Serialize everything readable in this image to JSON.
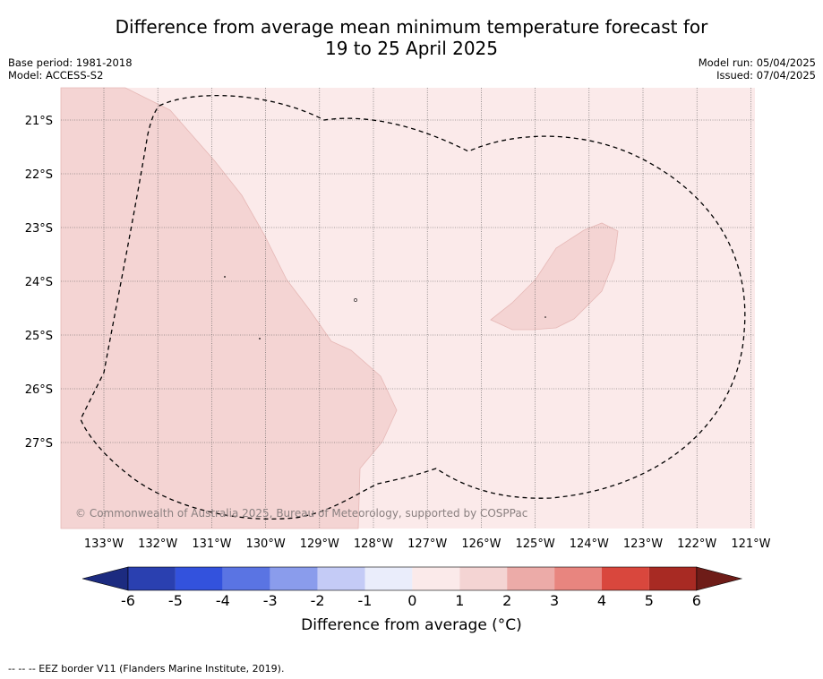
{
  "title": {
    "line1": "Difference from average mean minimum temperature forecast for",
    "line2": "19 to 25 April 2025"
  },
  "meta": {
    "base_period": "Base period: 1981-2018",
    "model": "Model: ACCESS-S2",
    "model_run": "Model run: 05/04/2025",
    "issued": "Issued: 07/04/2025"
  },
  "map": {
    "latitude_labels": [
      "21°S",
      "22°S",
      "23°S",
      "24°S",
      "25°S",
      "26°S",
      "27°S"
    ],
    "longitude_labels": [
      "133°W",
      "132°W",
      "131°W",
      "130°W",
      "129°W",
      "128°W",
      "127°W",
      "126°W",
      "125°W",
      "124°W",
      "123°W",
      "122°W",
      "121°W"
    ],
    "background_category": "0 to 1",
    "shaded_category": "1 to 2",
    "copyright": "© Commonwealth of Australia 2025, Bureau of Meteorology, supported by COSPPac"
  },
  "colorbar": {
    "label": "Difference from average (°C)",
    "ticks": [
      "-6",
      "-5",
      "-4",
      "-3",
      "-2",
      "-1",
      "0",
      "1",
      "2",
      "3",
      "4",
      "5",
      "6"
    ],
    "colors": [
      "#1c2b80",
      "#2a40b0",
      "#3352dd",
      "#5a74e3",
      "#8a9cec",
      "#c4cbf6",
      "#eaedfb",
      "#fbeaea",
      "#f4d4d3",
      "#ecaba8",
      "#e8857f",
      "#d9473d",
      "#a82a23",
      "#6e1c18"
    ]
  },
  "legend_note": "--  --  -- EEZ border V11 (Flanders Marine Institute, 2019)."
}
